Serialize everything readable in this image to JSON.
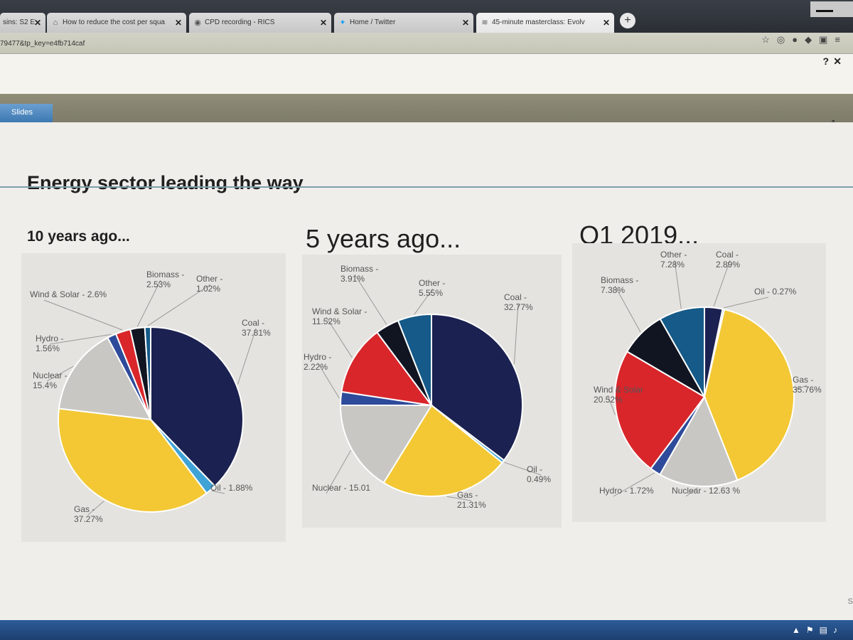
{
  "browser": {
    "tabs": [
      {
        "label": "sins: S2 E",
        "icon": "page-icon"
      },
      {
        "label": "How to reduce the cost per squa",
        "icon": "page-icon"
      },
      {
        "label": "CPD recording - RICS",
        "icon": "page-icon"
      },
      {
        "label": "Home / Twitter",
        "icon": "twitter-icon"
      },
      {
        "label": "45-minute masterclass: Evolv",
        "icon": "broadcast-icon"
      }
    ],
    "url": "79477&tp_key=e4fb714caf"
  },
  "page": {
    "help_label": "?",
    "close_label": "✕",
    "slides_tab": "Slides"
  },
  "slide": {
    "title": "Energy sector leading the way",
    "subtitles": [
      "10 years ago...",
      "5 years ago...",
      "Q1 2019..."
    ]
  },
  "colors": {
    "coal": "#1b2150",
    "oil": "#3fa3d6",
    "gas": "#f3c834",
    "nuclear": "#c9c7c4",
    "hydro": "#2e4a9a",
    "wind_solar": "#d9262b",
    "biomass": "#111522",
    "other": "#155a88"
  },
  "chart_data": [
    {
      "type": "pie",
      "title": "10 years ago...",
      "slices": [
        {
          "name": "Coal",
          "value": 37.81,
          "label": "Coal -\n37.81%"
        },
        {
          "name": "Oil",
          "value": 1.88,
          "label": "Oil - 1.88%"
        },
        {
          "name": "Gas",
          "value": 37.27,
          "label": "Gas -\n37.27%"
        },
        {
          "name": "Nuclear",
          "value": 15.4,
          "label": "Nuclear -\n15.4%"
        },
        {
          "name": "Hydro",
          "value": 1.56,
          "label": "Hydro -\n1.56%"
        },
        {
          "name": "Wind & Solar",
          "value": 2.6,
          "label": "Wind & Solar - 2.6%"
        },
        {
          "name": "Biomass",
          "value": 2.53,
          "label": "Biomass -\n2.53%"
        },
        {
          "name": "Other",
          "value": 1.02,
          "label": "Other -\n1.02%"
        }
      ]
    },
    {
      "type": "pie",
      "title": "5 years ago...",
      "slices": [
        {
          "name": "Coal",
          "value": 32.77,
          "label": "Coal -\n32.77%"
        },
        {
          "name": "Oil",
          "value": 0.49,
          "label": "Oil -\n0.49%"
        },
        {
          "name": "Gas",
          "value": 21.31,
          "label": "Gas -\n21.31%"
        },
        {
          "name": "Nuclear",
          "value": 15.01,
          "label": "Nuclear - 15.01"
        },
        {
          "name": "Hydro",
          "value": 2.22,
          "label": "Hydro -\n2.22%"
        },
        {
          "name": "Wind & Solar",
          "value": 11.52,
          "label": "Wind & Solar -\n11.52%"
        },
        {
          "name": "Biomass",
          "value": 3.91,
          "label": "Biomass -\n3.91%"
        },
        {
          "name": "Other",
          "value": 5.55,
          "label": "Other -\n5.55%"
        }
      ]
    },
    {
      "type": "pie",
      "title": "Q1 2019...",
      "slices": [
        {
          "name": "Coal",
          "value": 2.89,
          "label": "Coal -\n2.89%"
        },
        {
          "name": "Oil",
          "value": 0.27,
          "label": "Oil - 0.27%"
        },
        {
          "name": "Gas",
          "value": 35.76,
          "label": "Gas -\n35.76%"
        },
        {
          "name": "Nuclear",
          "value": 12.63,
          "label": "Nuclear - 12.63 %"
        },
        {
          "name": "Hydro",
          "value": 1.72,
          "label": "Hydro - 1.72%"
        },
        {
          "name": "Wind & Solar",
          "value": 20.52,
          "label": "Wind & Solar\n20.52%"
        },
        {
          "name": "Biomass",
          "value": 7.38,
          "label": "Biomass -\n7.38%"
        },
        {
          "name": "Other",
          "value": 7.28,
          "label": "Other -\n7.28%"
        }
      ]
    }
  ]
}
